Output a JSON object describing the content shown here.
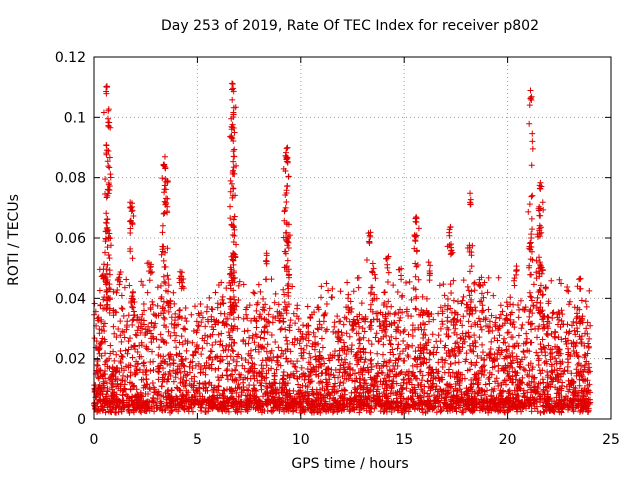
{
  "chart_data": {
    "type": "scatter",
    "title": "Day 253 of 2019, Rate Of TEC Index for receiver p802",
    "xlabel": "GPS time / hours",
    "ylabel": "ROTI / TECUs",
    "xlim": [
      0,
      25
    ],
    "ylim": [
      0,
      0.12
    ],
    "xticks": [
      "0",
      "5",
      "10",
      "15",
      "20",
      "25"
    ],
    "yticks": [
      "0",
      "0.02",
      "0.04",
      "0.06",
      "0.08",
      "0.1",
      "0.12"
    ],
    "grid": true,
    "marker": "+",
    "color": "#e00000",
    "series": [
      {
        "name": "ROTI",
        "x_range": [
          0,
          24
        ],
        "baseline_band": [
          0.002,
          0.035
        ],
        "peaks": [
          {
            "x": 0.6,
            "y": 0.111
          },
          {
            "x": 0.7,
            "y": 0.1
          },
          {
            "x": 0.65,
            "y": 0.091
          },
          {
            "x": 0.7,
            "y": 0.079
          },
          {
            "x": 0.6,
            "y": 0.066
          },
          {
            "x": 0.4,
            "y": 0.05
          },
          {
            "x": 1.2,
            "y": 0.049
          },
          {
            "x": 1.8,
            "y": 0.073
          },
          {
            "x": 1.8,
            "y": 0.066
          },
          {
            "x": 2.7,
            "y": 0.052
          },
          {
            "x": 3.4,
            "y": 0.087
          },
          {
            "x": 3.5,
            "y": 0.08
          },
          {
            "x": 3.5,
            "y": 0.074
          },
          {
            "x": 3.3,
            "y": 0.058
          },
          {
            "x": 4.2,
            "y": 0.049
          },
          {
            "x": 6.7,
            "y": 0.112
          },
          {
            "x": 6.75,
            "y": 0.104
          },
          {
            "x": 6.7,
            "y": 0.097
          },
          {
            "x": 6.75,
            "y": 0.085
          },
          {
            "x": 6.7,
            "y": 0.068
          },
          {
            "x": 6.7,
            "y": 0.056
          },
          {
            "x": 8.3,
            "y": 0.055
          },
          {
            "x": 9.3,
            "y": 0.09
          },
          {
            "x": 9.35,
            "y": 0.087
          },
          {
            "x": 9.3,
            "y": 0.078
          },
          {
            "x": 9.3,
            "y": 0.062
          },
          {
            "x": 13.3,
            "y": 0.062
          },
          {
            "x": 13.5,
            "y": 0.052
          },
          {
            "x": 14.2,
            "y": 0.054
          },
          {
            "x": 14.8,
            "y": 0.05
          },
          {
            "x": 15.6,
            "y": 0.069
          },
          {
            "x": 15.5,
            "y": 0.062
          },
          {
            "x": 16.2,
            "y": 0.052
          },
          {
            "x": 17.2,
            "y": 0.064
          },
          {
            "x": 17.3,
            "y": 0.058
          },
          {
            "x": 18.2,
            "y": 0.075
          },
          {
            "x": 18.2,
            "y": 0.058
          },
          {
            "x": 18.7,
            "y": 0.048
          },
          {
            "x": 20.4,
            "y": 0.051
          },
          {
            "x": 21.1,
            "y": 0.109
          },
          {
            "x": 21.1,
            "y": 0.06
          },
          {
            "x": 21.6,
            "y": 0.079
          },
          {
            "x": 21.55,
            "y": 0.071
          },
          {
            "x": 21.5,
            "y": 0.063
          },
          {
            "x": 21.6,
            "y": 0.053
          },
          {
            "x": 23.5,
            "y": 0.047
          }
        ]
      }
    ]
  }
}
